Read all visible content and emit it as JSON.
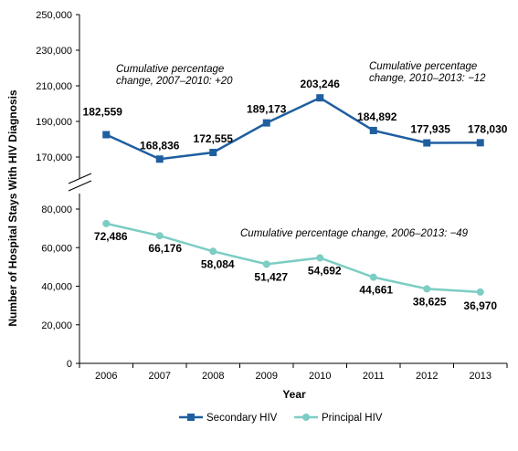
{
  "chart_data": {
    "type": "line",
    "xlabel": "Year",
    "ylabel": "Number of Hospital  Stays With HIV Diagnosis",
    "categories": [
      "2006",
      "2007",
      "2008",
      "2009",
      "2010",
      "2011",
      "2012",
      "2013"
    ],
    "upper_panel": {
      "ylim": [
        150000,
        250000
      ],
      "yticks": [
        "250,000",
        "230,000",
        "210,000",
        "190,000",
        "170,000"
      ],
      "ytick_values": [
        250000,
        230000,
        210000,
        190000,
        170000
      ],
      "axis_break": true
    },
    "lower_panel": {
      "ylim": [
        0,
        80000
      ],
      "yticks": [
        "80,000",
        "60,000",
        "40,000",
        "20,000",
        "0"
      ],
      "ytick_values": [
        80000,
        60000,
        40000,
        20000,
        0
      ]
    },
    "series": [
      {
        "name": "Secondary HIV",
        "color": "#1f5fa0",
        "marker": "square",
        "panel": "upper",
        "x": [
          "2007",
          "2008",
          "2009",
          "2010",
          "2011",
          "2012",
          "2013"
        ],
        "values": [
          168836,
          172555,
          189173,
          203246,
          184892,
          177935,
          178030
        ],
        "start": {
          "x": "2006",
          "value": 182559
        },
        "labels": [
          "168,836",
          "172,555",
          "189,173",
          "203,246",
          "184,892",
          "177,935",
          "178,030"
        ],
        "start_label": "182,559"
      },
      {
        "name": "Principal HIV",
        "color": "#7ccdc4",
        "marker": "circle",
        "panel": "lower",
        "values": [
          72486,
          66176,
          58084,
          51427,
          54692,
          44661,
          38625,
          36970
        ],
        "labels": [
          "72,486",
          "66,176",
          "58,084",
          "51,427",
          "54,692",
          "44,661",
          "38,625",
          "36,970"
        ]
      }
    ],
    "annotations": [
      {
        "lines": [
          "Cumulative percentage",
          "change, 2007–2010: +20"
        ]
      },
      {
        "lines": [
          "Cumulative percentage",
          "change, 2010–2013: −12"
        ]
      },
      {
        "lines": [
          "Cumulative percentage change, 2006–2013: −49"
        ]
      }
    ],
    "legend": {
      "placement": "bottom",
      "items": [
        "Secondary HIV",
        "Principal HIV"
      ]
    }
  }
}
